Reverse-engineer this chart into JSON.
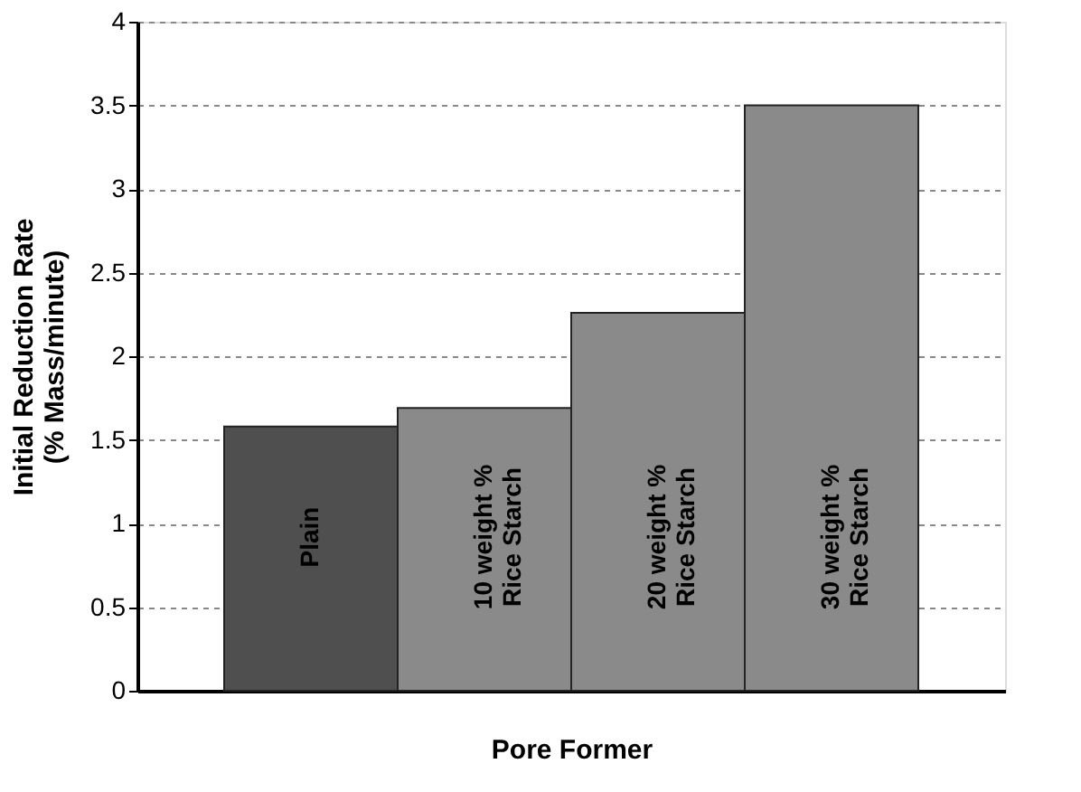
{
  "chart_data": {
    "type": "bar",
    "xlabel": "Pore Former",
    "ylabel": "Initial Reduction Rate\n(% Mass/minute)",
    "categories": [
      "Plain",
      "10 weight %\nRice Starch",
      "20 weight %\nRice Starch",
      "30 weight %\nRice Starch"
    ],
    "values": [
      1.58,
      1.69,
      2.26,
      3.5
    ],
    "colors": [
      "#4f4f4f",
      "#8a8a8a",
      "#8a8a8a",
      "#8a8a8a"
    ],
    "ylim": [
      0,
      4
    ],
    "yticks": [
      0,
      0.5,
      1,
      1.5,
      2,
      2.5,
      3,
      3.5,
      4
    ],
    "grid": "y",
    "tick_labels": "y"
  }
}
